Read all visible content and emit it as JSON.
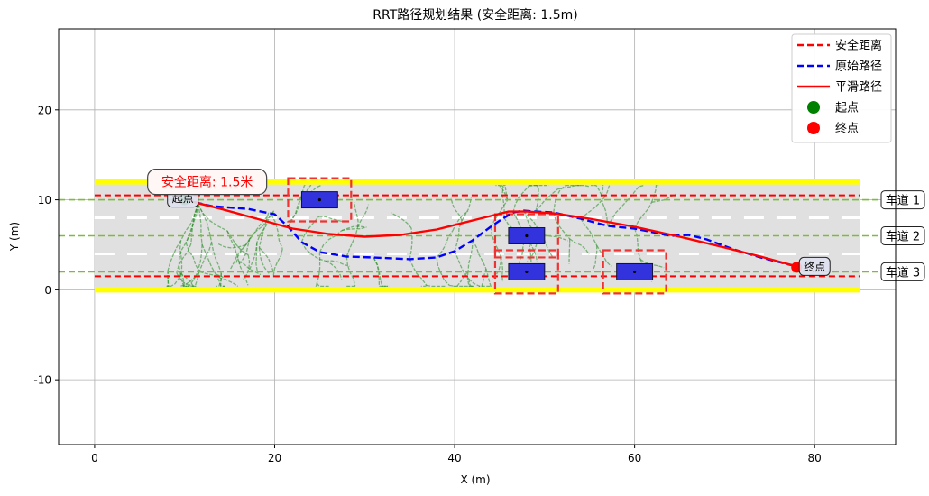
{
  "chart_data": {
    "type": "scatter",
    "title": "RRT路径规划结果 (安全距离: 1.5m)",
    "xlabel": "X (m)",
    "ylabel": "Y (m)",
    "xlim": [
      -4,
      89
    ],
    "ylim": [
      -17.2,
      29
    ],
    "xticks": [
      0,
      20,
      40,
      60,
      80
    ],
    "yticks": [
      -10,
      0,
      10,
      20
    ],
    "grid": true,
    "legend_position": "top-right",
    "legend": [
      {
        "label": "安全距离",
        "style": "dashed",
        "color": "#ff0000"
      },
      {
        "label": "原始路径",
        "style": "dashed",
        "color": "#0000ff"
      },
      {
        "label": "平滑路径",
        "style": "solid",
        "color": "#ff0000"
      },
      {
        "label": "起点",
        "style": "marker",
        "color": "#008000"
      },
      {
        "label": "终点",
        "style": "marker",
        "color": "#ff0000"
      }
    ],
    "road": {
      "x_range": [
        0,
        85
      ],
      "y_range": [
        0,
        12
      ],
      "boundary_color": "#ffff00",
      "surface_color": "#e0e0e0"
    },
    "lane_lines": [
      4,
      8
    ],
    "lanes": [
      {
        "label": "车道 1",
        "y": 10
      },
      {
        "label": "车道 2",
        "y": 6
      },
      {
        "label": "车道 3",
        "y": 2
      }
    ],
    "safety_lines": [
      10.5,
      1.5
    ],
    "obstacles": [
      {
        "x": 25,
        "y": 10,
        "w": 4,
        "h": 1.8
      },
      {
        "x": 48,
        "y": 6,
        "w": 4,
        "h": 1.8
      },
      {
        "x": 48,
        "y": 2,
        "w": 4,
        "h": 1.8
      },
      {
        "x": 60,
        "y": 2,
        "w": 4,
        "h": 1.8
      }
    ],
    "safety_margin": 1.5,
    "start": {
      "x": 10,
      "y": 10,
      "label": "起点"
    },
    "goal": {
      "x": 78,
      "y": 2.5,
      "label": "终点"
    },
    "raw_path": [
      [
        10,
        10
      ],
      [
        13,
        9.3
      ],
      [
        17,
        9
      ],
      [
        20,
        8.4
      ],
      [
        21.5,
        7
      ],
      [
        23,
        5.3
      ],
      [
        25,
        4.2
      ],
      [
        28,
        3.7
      ],
      [
        31,
        3.6
      ],
      [
        35,
        3.4
      ],
      [
        38,
        3.6
      ],
      [
        40,
        4.3
      ],
      [
        42,
        5.5
      ],
      [
        44,
        7
      ],
      [
        45.5,
        8
      ],
      [
        46.5,
        8.6
      ],
      [
        47.7,
        8.8
      ],
      [
        49,
        8.7
      ],
      [
        51,
        8.6
      ],
      [
        54,
        7.9
      ],
      [
        57,
        7.1
      ],
      [
        60,
        6.8
      ],
      [
        62,
        6.4
      ],
      [
        64,
        6
      ],
      [
        66,
        6.1
      ],
      [
        68,
        5.6
      ],
      [
        71,
        4.5
      ],
      [
        74,
        3.6
      ],
      [
        78,
        2.6
      ]
    ],
    "smooth_path": [
      [
        10,
        10
      ],
      [
        14,
        9
      ],
      [
        18,
        7.9
      ],
      [
        22,
        6.8
      ],
      [
        26,
        6.2
      ],
      [
        30,
        5.9
      ],
      [
        34,
        6.1
      ],
      [
        38,
        6.7
      ],
      [
        42,
        7.7
      ],
      [
        44,
        8.2
      ],
      [
        46,
        8.7
      ],
      [
        48,
        8.7
      ],
      [
        51,
        8.5
      ],
      [
        55,
        7.9
      ],
      [
        60,
        7
      ],
      [
        65,
        5.9
      ],
      [
        70,
        4.7
      ],
      [
        74,
        3.7
      ],
      [
        78,
        2.6
      ]
    ],
    "annotation": "安全距离: 1.5米"
  }
}
